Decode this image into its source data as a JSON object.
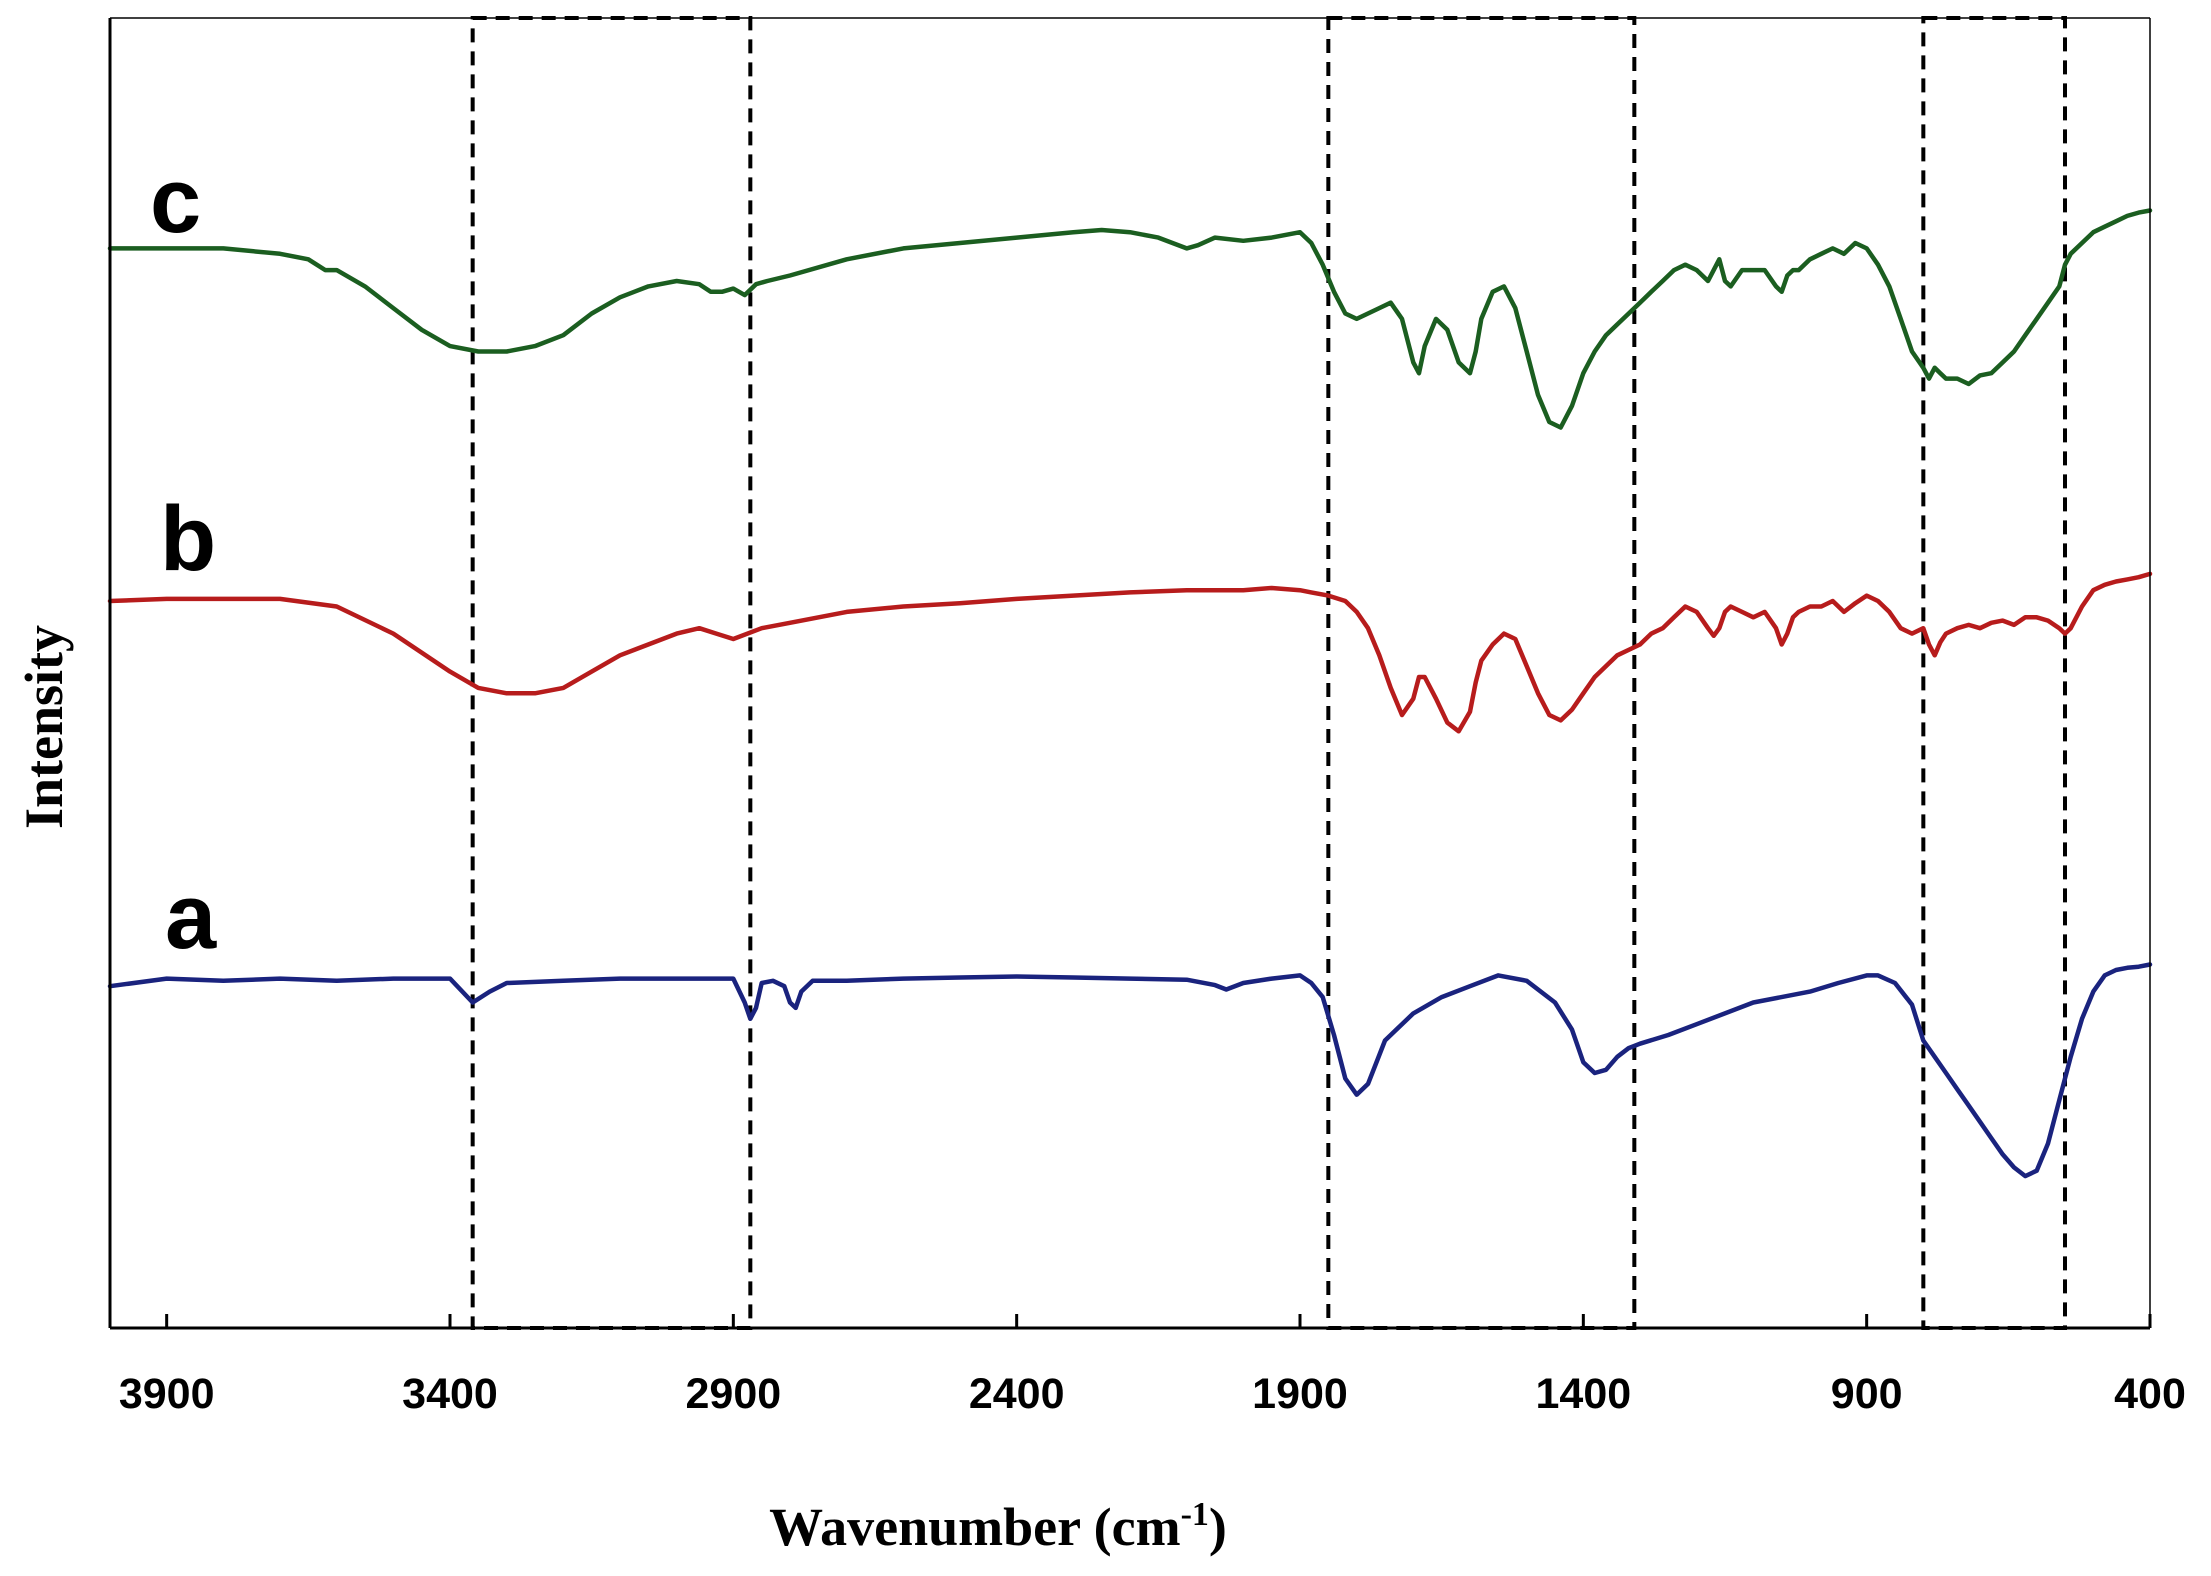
{
  "chart_data": {
    "type": "line",
    "title": "",
    "xlabel_main": "Wavenumber (cm",
    "xlabel_sup": "-1",
    "xlabel_close": ")",
    "ylabel": "Intensity",
    "xlim": [
      4000,
      400
    ],
    "x_reversed": true,
    "ylim": [
      0,
      1
    ],
    "y_ticks_shown": false,
    "grid": false,
    "x_ticks": [
      3900,
      3400,
      2900,
      2400,
      1900,
      1400,
      900,
      400
    ],
    "x_tick_labels": [
      "3900",
      "3400",
      "2900",
      "2400",
      "1900",
      "1400",
      "900",
      "400"
    ],
    "highlight_regions": [
      {
        "from": 3360,
        "to": 2870
      },
      {
        "from": 1850,
        "to": 1310
      },
      {
        "from": 800,
        "to": 550
      }
    ],
    "series": [
      {
        "name": "a",
        "color": "#1a237e",
        "x": [
          4000,
          3900,
          3800,
          3700,
          3600,
          3500,
          3400,
          3360,
          3330,
          3300,
          3200,
          3100,
          3000,
          2900,
          2880,
          2870,
          2860,
          2850,
          2830,
          2810,
          2800,
          2790,
          2780,
          2760,
          2700,
          2600,
          2500,
          2400,
          2300,
          2200,
          2100,
          2050,
          2030,
          2000,
          1950,
          1900,
          1880,
          1860,
          1840,
          1820,
          1800,
          1780,
          1750,
          1700,
          1650,
          1600,
          1550,
          1500,
          1450,
          1420,
          1400,
          1380,
          1360,
          1340,
          1320,
          1300,
          1250,
          1200,
          1100,
          1000,
          950,
          900,
          880,
          850,
          820,
          800,
          780,
          760,
          740,
          720,
          700,
          680,
          660,
          640,
          620,
          600,
          580,
          560,
          540,
          520,
          500,
          480,
          460,
          440,
          420,
          400
        ],
        "y": [
          0.315,
          0.322,
          0.32,
          0.322,
          0.32,
          0.322,
          0.322,
          0.3,
          0.31,
          0.318,
          0.32,
          0.322,
          0.322,
          0.322,
          0.3,
          0.285,
          0.295,
          0.318,
          0.32,
          0.315,
          0.3,
          0.295,
          0.31,
          0.32,
          0.32,
          0.322,
          0.323,
          0.324,
          0.323,
          0.322,
          0.321,
          0.316,
          0.312,
          0.318,
          0.322,
          0.325,
          0.318,
          0.305,
          0.27,
          0.23,
          0.215,
          0.225,
          0.265,
          0.29,
          0.305,
          0.315,
          0.325,
          0.32,
          0.3,
          0.275,
          0.245,
          0.235,
          0.238,
          0.25,
          0.258,
          0.262,
          0.27,
          0.28,
          0.3,
          0.31,
          0.318,
          0.325,
          0.325,
          0.318,
          0.298,
          0.265,
          0.25,
          0.235,
          0.22,
          0.205,
          0.19,
          0.175,
          0.16,
          0.148,
          0.14,
          0.145,
          0.17,
          0.21,
          0.25,
          0.285,
          0.31,
          0.325,
          0.33,
          0.332,
          0.333,
          0.335
        ]
      },
      {
        "name": "b",
        "color": "#b71c1c",
        "x": [
          4000,
          3900,
          3800,
          3700,
          3600,
          3500,
          3400,
          3350,
          3300,
          3250,
          3200,
          3150,
          3100,
          3000,
          2960,
          2930,
          2900,
          2850,
          2800,
          2700,
          2600,
          2500,
          2400,
          2300,
          2200,
          2100,
          2000,
          1950,
          1900,
          1880,
          1850,
          1820,
          1800,
          1780,
          1760,
          1740,
          1720,
          1700,
          1690,
          1680,
          1660,
          1640,
          1620,
          1600,
          1590,
          1580,
          1560,
          1540,
          1520,
          1500,
          1480,
          1460,
          1440,
          1420,
          1400,
          1380,
          1360,
          1340,
          1320,
          1300,
          1280,
          1260,
          1240,
          1220,
          1200,
          1180,
          1170,
          1160,
          1150,
          1140,
          1120,
          1100,
          1080,
          1060,
          1050,
          1040,
          1030,
          1020,
          1000,
          980,
          960,
          940,
          920,
          900,
          880,
          860,
          840,
          820,
          800,
          790,
          780,
          770,
          760,
          740,
          720,
          700,
          680,
          660,
          640,
          620,
          600,
          580,
          560,
          550,
          540,
          520,
          500,
          480,
          460,
          440,
          420,
          400
        ],
        "y": [
          0.67,
          0.672,
          0.672,
          0.672,
          0.665,
          0.64,
          0.605,
          0.59,
          0.585,
          0.585,
          0.59,
          0.605,
          0.62,
          0.64,
          0.645,
          0.64,
          0.635,
          0.645,
          0.65,
          0.66,
          0.665,
          0.668,
          0.672,
          0.675,
          0.678,
          0.68,
          0.68,
          0.682,
          0.68,
          0.678,
          0.675,
          0.67,
          0.66,
          0.645,
          0.62,
          0.59,
          0.565,
          0.58,
          0.6,
          0.6,
          0.58,
          0.558,
          0.55,
          0.568,
          0.595,
          0.615,
          0.63,
          0.64,
          0.635,
          0.61,
          0.585,
          0.565,
          0.56,
          0.57,
          0.585,
          0.6,
          0.61,
          0.62,
          0.625,
          0.63,
          0.64,
          0.645,
          0.655,
          0.665,
          0.66,
          0.645,
          0.638,
          0.645,
          0.66,
          0.665,
          0.66,
          0.655,
          0.66,
          0.645,
          0.63,
          0.64,
          0.655,
          0.66,
          0.665,
          0.665,
          0.67,
          0.66,
          0.668,
          0.675,
          0.67,
          0.66,
          0.645,
          0.64,
          0.645,
          0.63,
          0.62,
          0.632,
          0.64,
          0.645,
          0.648,
          0.645,
          0.65,
          0.652,
          0.648,
          0.655,
          0.655,
          0.652,
          0.645,
          0.64,
          0.645,
          0.665,
          0.68,
          0.685,
          0.688,
          0.69,
          0.692,
          0.695
        ]
      },
      {
        "name": "c",
        "color": "#1b5e20",
        "x": [
          4000,
          3900,
          3800,
          3700,
          3650,
          3620,
          3600,
          3550,
          3500,
          3450,
          3400,
          3350,
          3300,
          3250,
          3200,
          3150,
          3100,
          3050,
          3000,
          2960,
          2940,
          2920,
          2900,
          2880,
          2860,
          2840,
          2800,
          2700,
          2600,
          2500,
          2400,
          2300,
          2250,
          2200,
          2150,
          2100,
          2080,
          2050,
          2000,
          1950,
          1900,
          1880,
          1860,
          1840,
          1820,
          1800,
          1780,
          1760,
          1740,
          1720,
          1700,
          1690,
          1680,
          1660,
          1640,
          1620,
          1600,
          1590,
          1580,
          1560,
          1540,
          1520,
          1500,
          1480,
          1460,
          1440,
          1420,
          1400,
          1380,
          1360,
          1340,
          1320,
          1300,
          1280,
          1260,
          1240,
          1220,
          1200,
          1180,
          1170,
          1160,
          1150,
          1140,
          1120,
          1100,
          1080,
          1060,
          1050,
          1040,
          1030,
          1020,
          1000,
          980,
          960,
          940,
          920,
          900,
          880,
          860,
          840,
          820,
          800,
          790,
          780,
          770,
          760,
          740,
          720,
          700,
          680,
          660,
          640,
          620,
          600,
          580,
          560,
          550,
          540,
          520,
          500,
          480,
          460,
          440,
          420,
          400
        ],
        "y": [
          0.995,
          0.995,
          0.995,
          0.99,
          0.985,
          0.975,
          0.975,
          0.96,
          0.94,
          0.92,
          0.905,
          0.9,
          0.9,
          0.905,
          0.915,
          0.935,
          0.95,
          0.96,
          0.965,
          0.962,
          0.955,
          0.955,
          0.958,
          0.952,
          0.962,
          0.965,
          0.97,
          0.985,
          0.995,
          1,
          1.005,
          1.01,
          1.012,
          1.01,
          1.005,
          0.995,
          0.998,
          1.005,
          1.002,
          1.005,
          1.01,
          1.0,
          0.98,
          0.955,
          0.935,
          0.93,
          0.935,
          0.94,
          0.945,
          0.93,
          0.89,
          0.88,
          0.905,
          0.93,
          0.92,
          0.89,
          0.88,
          0.9,
          0.93,
          0.955,
          0.96,
          0.94,
          0.9,
          0.86,
          0.835,
          0.83,
          0.85,
          0.88,
          0.9,
          0.915,
          0.925,
          0.935,
          0.945,
          0.955,
          0.965,
          0.975,
          0.98,
          0.975,
          0.965,
          0.975,
          0.985,
          0.965,
          0.96,
          0.975,
          0.975,
          0.975,
          0.96,
          0.955,
          0.97,
          0.975,
          0.975,
          0.985,
          0.99,
          0.995,
          0.99,
          1.0,
          0.995,
          0.98,
          0.96,
          0.93,
          0.9,
          0.885,
          0.875,
          0.885,
          0.88,
          0.875,
          0.875,
          0.87,
          0.878,
          0.88,
          0.89,
          0.9,
          0.915,
          0.93,
          0.945,
          0.96,
          0.98,
          0.99,
          1.0,
          1.01,
          1.015,
          1.02,
          1.025,
          1.028,
          1.03
        ]
      }
    ]
  }
}
